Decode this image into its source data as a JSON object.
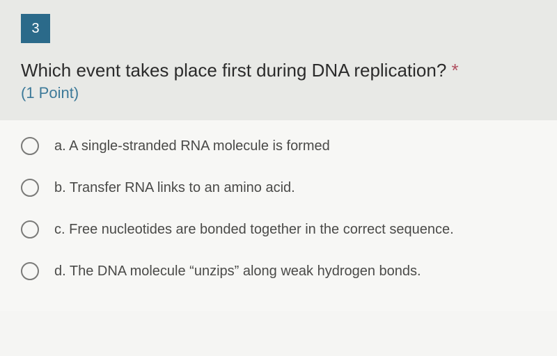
{
  "question": {
    "number": "3",
    "text": "Which event takes place first during DNA replication? ",
    "required_mark": "*",
    "points": "(1 Point)",
    "number_badge_bg": "#2b6a8a",
    "number_badge_fg": "#ffffff",
    "header_bg": "#e8e9e6",
    "text_color": "#2b2b2b",
    "points_color": "#3d7a99",
    "required_color": "#b05060",
    "font_size_question": 26,
    "font_size_points": 22
  },
  "options_area": {
    "bg": "#f7f7f5",
    "font_size": 20,
    "label_color": "#4a4a48",
    "radio_border": "#7a7a78",
    "radio_size": 26,
    "spacing": 34
  },
  "options": [
    {
      "label": "a. A single-stranded RNA molecule is formed",
      "selected": false
    },
    {
      "label": "b. Transfer RNA links to an amino acid.",
      "selected": false
    },
    {
      "label": "c. Free nucleotides are bonded together in the correct sequence.",
      "selected": false
    },
    {
      "label": "d. The DNA molecule “unzips” along weak hydrogen bonds.",
      "selected": false
    }
  ]
}
